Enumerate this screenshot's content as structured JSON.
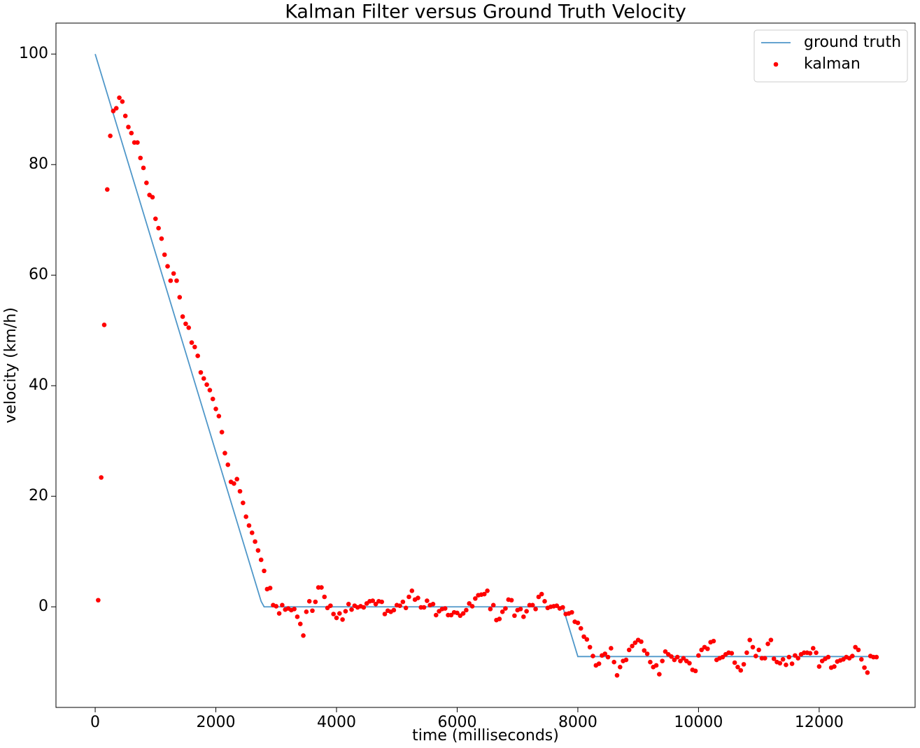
{
  "chart_data": {
    "type": "line",
    "title": "Kalman Filter versus Ground Truth Velocity",
    "x_label": "time (milliseconds)",
    "y_label": "velocity (km/h)",
    "xlim": [
      -650,
      13590
    ],
    "ylim": [
      -18.2,
      105.6
    ],
    "xticks": [
      0,
      2000,
      4000,
      6000,
      8000,
      10000,
      12000
    ],
    "yticks": [
      0,
      20,
      40,
      60,
      80,
      100
    ],
    "legend": "upper right",
    "series": [
      {
        "name": "ground truth",
        "type": "line",
        "color": "#4f97c9",
        "x": [
          0,
          2750,
          2800,
          7750,
          8000,
          12850
        ],
        "values": [
          100,
          1,
          0,
          0,
          -9,
          -9
        ]
      },
      {
        "name": "kalman",
        "type": "scatter",
        "color": "#ff0000",
        "x": [
          50,
          100,
          150,
          200,
          250,
          300,
          350,
          400,
          450,
          500,
          550,
          600,
          650,
          700,
          750,
          800,
          850,
          900,
          950,
          1000,
          1050,
          1100,
          1150,
          1200,
          1250,
          1300,
          1350,
          1400,
          1450,
          1500,
          1550,
          1600,
          1650,
          1700,
          1750,
          1800,
          1850,
          1900,
          1950,
          2000,
          2050,
          2100,
          2150,
          2200,
          2250,
          2300,
          2350,
          2400,
          2450,
          2500,
          2550,
          2600,
          2650,
          2700,
          2750,
          2800,
          2850,
          2900,
          2950,
          3000,
          3050,
          3100,
          3150,
          3200,
          3250,
          3300,
          3350,
          3400,
          3450,
          3500,
          3550,
          3600,
          3650,
          3700,
          3750,
          3800,
          3850,
          3900,
          3950,
          4000,
          4050,
          4100,
          4150,
          4200,
          4250,
          4300,
          4350,
          4400,
          4450,
          4500,
          4550,
          4600,
          4650,
          4700,
          4750,
          4800,
          4850,
          4900,
          4950,
          5000,
          5050,
          5100,
          5150,
          5200,
          5250,
          5300,
          5350,
          5400,
          5450,
          5500,
          5550,
          5600,
          5650,
          5700,
          5750,
          5800,
          5850,
          5900,
          5950,
          6000,
          6050,
          6100,
          6150,
          6200,
          6250,
          6300,
          6350,
          6400,
          6450,
          6500,
          6550,
          6600,
          6650,
          6700,
          6750,
          6800,
          6850,
          6900,
          6950,
          7000,
          7050,
          7100,
          7150,
          7200,
          7250,
          7300,
          7350,
          7400,
          7450,
          7500,
          7550,
          7600,
          7650,
          7700,
          7750,
          7800,
          7850,
          7900,
          7950,
          8000,
          8050,
          8100,
          8150,
          8200,
          8250,
          8300,
          8350,
          8400,
          8450,
          8500,
          8550,
          8600,
          8650,
          8700,
          8750,
          8800,
          8850,
          8900,
          8950,
          9000,
          9050,
          9100,
          9150,
          9200,
          9250,
          9300,
          9350,
          9400,
          9450,
          9500,
          9550,
          9600,
          9650,
          9700,
          9750,
          9800,
          9850,
          9900,
          9950,
          10000,
          10050,
          10100,
          10150,
          10200,
          10250,
          10300,
          10350,
          10400,
          10450,
          10500,
          10550,
          10600,
          10650,
          10700,
          10750,
          10800,
          10850,
          10900,
          10950,
          11000,
          11050,
          11100,
          11150,
          11200,
          11250,
          11300,
          11350,
          11400,
          11450,
          11500,
          11550,
          11600,
          11650,
          11700,
          11750,
          11800,
          11850,
          11900,
          11950,
          12000,
          12050,
          12100,
          12150,
          12200,
          12250,
          12300,
          12350,
          12400,
          12450,
          12500,
          12550,
          12600,
          12650,
          12700,
          12750,
          12800,
          12850,
          12900,
          12950
        ],
        "values": [
          1.2,
          23.4,
          51,
          75.5,
          85.2,
          89.7,
          90.2,
          92.1,
          91.4,
          88.8,
          86.8,
          85.7,
          84,
          84,
          81.2,
          79.4,
          76.7,
          74.5,
          74.1,
          70.2,
          68.5,
          66.6,
          63.7,
          61.6,
          59,
          60.3,
          59,
          56,
          52.5,
          51.2,
          50.5,
          47.8,
          47,
          45.4,
          42.4,
          41.3,
          40.2,
          39.2,
          37.6,
          35.8,
          34.5,
          31.6,
          27.8,
          25.7,
          22.6,
          22.3,
          23.1,
          20.9,
          18.8,
          16.3,
          14.7,
          13.4,
          11.8,
          10.2,
          8.5,
          6.5,
          3.2,
          3.4,
          0.3,
          0.1,
          -1.2,
          0.3,
          -0.5,
          -0.3,
          -0.6,
          -0.4,
          -1.8,
          -3.1,
          -5.2,
          -0.9,
          1,
          -0.7,
          0.9,
          3.5,
          3.5,
          1.8,
          -0.2,
          0.2,
          -1.3,
          -2,
          -1.2,
          -2.3,
          -0.8,
          0.5,
          -0.5,
          0.2,
          -0.1,
          0.1,
          -0.1,
          0.6,
          1,
          1.1,
          0.5,
          1,
          0.9,
          -1.3,
          -0.7,
          -0.9,
          -0.6,
          0.3,
          0.2,
          0.9,
          -0.2,
          1.8,
          2.9,
          1.3,
          1.6,
          -0.1,
          -0.1,
          1.1,
          0.3,
          0.5,
          -1.5,
          -0.8,
          -0.4,
          -0.3,
          -1.5,
          -1.5,
          -1,
          -1.1,
          -1.6,
          -1.2,
          -0.6,
          0.6,
          0.1,
          1.5,
          2.1,
          2.2,
          2.3,
          2.9,
          -0.4,
          0.3,
          -2.4,
          -2.2,
          -0.9,
          -0.3,
          1.3,
          1.2,
          -1.6,
          -0.6,
          -0.4,
          -1.8,
          -0.8,
          0.3,
          0.3,
          -0.4,
          1.8,
          2.3,
          1,
          -0.2,
          0,
          0.1,
          0.2,
          -0.3,
          -0.1,
          -1.3,
          -1.2,
          -1,
          -2.7,
          -2.9,
          -3.9,
          -5.4,
          -5.9,
          -7.3,
          -8.9,
          -10.6,
          -10.3,
          -8.8,
          -8.5,
          -9.1,
          -7.5,
          -10,
          -12.4,
          -10.9,
          -9.8,
          -9.6,
          -7.8,
          -7.1,
          -6.5,
          -6,
          -6.3,
          -7.9,
          -8.5,
          -10,
          -10.9,
          -10.6,
          -12.2,
          -9.8,
          -8.1,
          -8.6,
          -9,
          -9.6,
          -9.1,
          -9.8,
          -9.3,
          -9.8,
          -10.2,
          -11.4,
          -11.6,
          -8.8,
          -7.8,
          -7.3,
          -7.6,
          -6.4,
          -6.2,
          -9.6,
          -9.3,
          -9.1,
          -8.6,
          -8.3,
          -8.4,
          -10.1,
          -10.9,
          -11.5,
          -10.4,
          -8.3,
          -6,
          -7.3,
          -8.9,
          -7.8,
          -9.3,
          -9.3,
          -6.7,
          -6,
          -9.4,
          -10,
          -10.2,
          -9.5,
          -10.5,
          -9.1,
          -10.3,
          -8.8,
          -9.3,
          -8.6,
          -8.3,
          -8.3,
          -8.4,
          -7.5,
          -8.3,
          -10.8,
          -9.8,
          -9.4,
          -9.1,
          -11,
          -10.8,
          -9.9,
          -9.7,
          -9.5,
          -9.1,
          -9.3,
          -8.9,
          -7.3,
          -7.8,
          -9.5,
          -11,
          -11.9,
          -8.9,
          -9.1,
          -9.1
        ]
      }
    ]
  }
}
